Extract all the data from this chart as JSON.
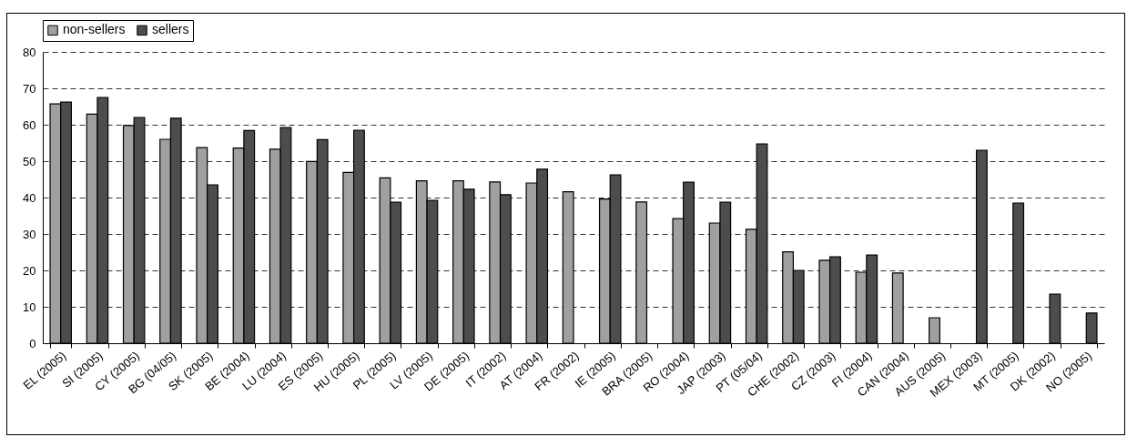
{
  "chart_data": {
    "type": "bar",
    "categories": [
      "EL (2005)",
      "SI (2005)",
      "CY (2005)",
      "BG (04/05)",
      "SK (2005)",
      "BE (2004)",
      "LU (2004)",
      "ES (2005)",
      "HU (2005)",
      "PL (2005)",
      "LV (2005)",
      "DE (2005)",
      "IT (2002)",
      "AT (2004)",
      "FR (2002)",
      "IE (2005)",
      "BRA (2005)",
      "RO (2004)",
      "JAP (2003)",
      "PT (05/04)",
      "CHE (2002)",
      "CZ (2003)",
      "FI (2004)",
      "CAN (2004)",
      "AUS (2005)",
      "MEX (2003)",
      "MT (2005)",
      "DK (2002)",
      "NO (2005)"
    ],
    "series": [
      {
        "name": "non-sellers",
        "color": "#a0a0a0",
        "values": [
          65.7,
          62.9,
          59.8,
          56,
          53.7,
          53.6,
          53.3,
          49.9,
          46.9,
          45.4,
          44.6,
          44.6,
          44.3,
          44,
          41.6,
          39.6,
          38.8,
          34.2,
          33,
          31.3,
          25.1,
          22.8,
          19.5,
          19.3,
          7,
          null,
          null,
          null,
          null
        ]
      },
      {
        "name": "sellers",
        "color": "#4d4d4d",
        "values": [
          66.2,
          67.5,
          62,
          61.8,
          43.5,
          58.4,
          59.2,
          55.9,
          58.5,
          38.7,
          39.2,
          42.3,
          40.8,
          47.8,
          null,
          46.2,
          null,
          44.2,
          38.7,
          54.7,
          20,
          23.7,
          24.2,
          null,
          null,
          53,
          38.5,
          13.5,
          8.3
        ]
      }
    ],
    "ylim": [
      0,
      80
    ],
    "yticks": [
      0,
      10,
      20,
      30,
      40,
      50,
      60,
      70,
      80
    ],
    "grid": "y",
    "legend": "top"
  }
}
